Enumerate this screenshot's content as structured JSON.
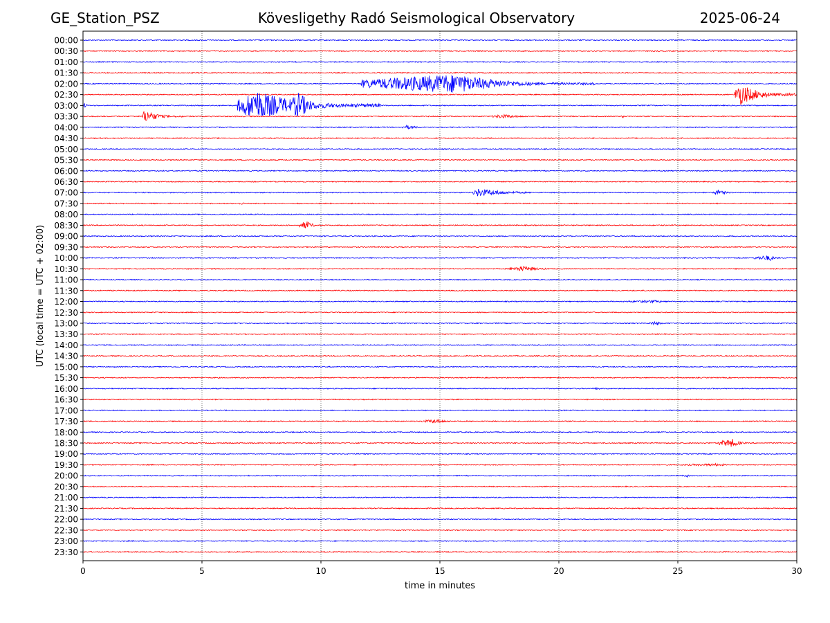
{
  "header": {
    "station": "GE_Station_PSZ",
    "observatory": "Kövesligethy Radó Seismological Observatory",
    "date": "2025-06-24"
  },
  "chart_data": {
    "type": "line",
    "title": "Kövesligethy Radó Seismological Observatory",
    "xlabel": "time in minutes",
    "ylabel": "UTC (local time = UTC + 02:00)",
    "xlim": [
      0,
      30
    ],
    "xticks": [
      "0",
      "5",
      "10",
      "15",
      "20",
      "25",
      "30"
    ],
    "vertical_gridlines_at": [
      5,
      10,
      15,
      20,
      25
    ],
    "grid": "vertical dotted",
    "series_colors": [
      "#0000ff",
      "#ff0000"
    ],
    "rows": [
      "00:00",
      "00:30",
      "01:00",
      "01:30",
      "02:00",
      "02:30",
      "03:00",
      "03:30",
      "04:00",
      "04:30",
      "05:00",
      "05:30",
      "06:00",
      "06:30",
      "07:00",
      "07:30",
      "08:00",
      "08:30",
      "09:00",
      "09:30",
      "10:00",
      "10:30",
      "11:00",
      "11:30",
      "12:00",
      "12:30",
      "13:00",
      "13:30",
      "14:00",
      "14:30",
      "15:00",
      "15:30",
      "16:00",
      "16:30",
      "17:00",
      "17:30",
      "18:00",
      "18:30",
      "19:00",
      "19:30",
      "20:00",
      "20:30",
      "21:00",
      "21:30",
      "22:00",
      "22:30",
      "23:00",
      "23:30"
    ],
    "events": [
      {
        "row": "02:00",
        "start": 11.7,
        "end": 21.5,
        "peak": 15.7,
        "amp": 14
      },
      {
        "row": "02:30",
        "start": 27.4,
        "end": 30.0,
        "peak": 27.6,
        "amp": 16
      },
      {
        "row": "03:00",
        "start": 0.0,
        "end": 0.3,
        "peak": 0.1,
        "amp": 4
      },
      {
        "row": "03:00",
        "start": 6.5,
        "end": 12.5,
        "peak": 7.3,
        "amp": 22
      },
      {
        "row": "03:00",
        "start": 8.7,
        "end": 10.5,
        "peak": 9.1,
        "amp": 20
      },
      {
        "row": "03:30",
        "start": 2.5,
        "end": 4.2,
        "peak": 2.6,
        "amp": 10
      },
      {
        "row": "03:30",
        "start": 17.2,
        "end": 20.5,
        "peak": 17.6,
        "amp": 3
      },
      {
        "row": "03:30",
        "start": 22.6,
        "end": 23.0,
        "peak": 22.7,
        "amp": 2
      },
      {
        "row": "04:00",
        "start": 13.4,
        "end": 15.2,
        "peak": 13.6,
        "amp": 3
      },
      {
        "row": "07:00",
        "start": 16.4,
        "end": 20.3,
        "peak": 16.6,
        "amp": 6
      },
      {
        "row": "07:00",
        "start": 26.5,
        "end": 27.8,
        "peak": 26.7,
        "amp": 4
      },
      {
        "row": "07:30",
        "start": 6.5,
        "end": 7.0,
        "peak": 6.7,
        "amp": 2
      },
      {
        "row": "08:30",
        "start": 9.1,
        "end": 10.2,
        "peak": 9.4,
        "amp": 6
      },
      {
        "row": "10:00",
        "start": 28.2,
        "end": 29.6,
        "peak": 28.9,
        "amp": 4
      },
      {
        "row": "10:30",
        "start": 17.9,
        "end": 20.6,
        "peak": 18.5,
        "amp": 4
      },
      {
        "row": "12:00",
        "start": 22.7,
        "end": 26.0,
        "peak": 24.0,
        "amp": 2
      },
      {
        "row": "13:00",
        "start": 23.8,
        "end": 24.8,
        "peak": 24.1,
        "amp": 3
      },
      {
        "row": "16:00",
        "start": 21.5,
        "end": 22.0,
        "peak": 21.6,
        "amp": 2
      },
      {
        "row": "17:30",
        "start": 14.2,
        "end": 16.5,
        "peak": 14.9,
        "amp": 3
      },
      {
        "row": "18:30",
        "start": 26.7,
        "end": 28.3,
        "peak": 27.3,
        "amp": 6
      },
      {
        "row": "19:30",
        "start": 25.0,
        "end": 28.0,
        "peak": 26.7,
        "amp": 2
      },
      {
        "row": "20:00",
        "start": 25.2,
        "end": 25.7,
        "peak": 25.4,
        "amp": 2
      }
    ]
  }
}
